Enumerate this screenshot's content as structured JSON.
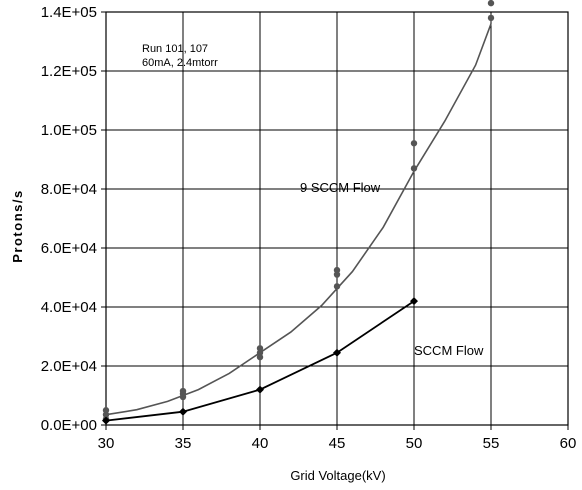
{
  "chart_data": {
    "type": "line",
    "xlabel": "Grid  Voltage(kV)",
    "ylabel": "Protons/s",
    "xlim": [
      30,
      60
    ],
    "ylim": [
      0,
      140000
    ],
    "x_ticks": [
      "30",
      "35",
      "40",
      "45",
      "50",
      "55",
      "60"
    ],
    "y_ticks": [
      "0.0E+00",
      "2.0E+04",
      "4.0E+04",
      "6.0E+04",
      "8.0E+04",
      "1.0E+05",
      "1.2E+05",
      "1.4E+05"
    ],
    "grid": true,
    "annotation": [
      "Run 101, 107",
      "60mA, 2.4mtorr"
    ],
    "series": [
      {
        "name": "9 SCCM Flow",
        "color": "#555555",
        "points": [
          [
            30,
            2000
          ],
          [
            30,
            3500
          ],
          [
            30,
            5000
          ],
          [
            35,
            9500
          ],
          [
            35,
            10500
          ],
          [
            35,
            11500
          ],
          [
            40,
            23000
          ],
          [
            40,
            24500
          ],
          [
            40,
            26000
          ],
          [
            45,
            47000
          ],
          [
            45,
            51000
          ],
          [
            45,
            52500
          ],
          [
            50,
            87000
          ],
          [
            50,
            95500
          ],
          [
            55,
            138000
          ],
          [
            55,
            143000
          ]
        ],
        "fit": [
          [
            30,
            3500
          ],
          [
            32,
            5200
          ],
          [
            34,
            8000
          ],
          [
            36,
            12000
          ],
          [
            38,
            17500
          ],
          [
            40,
            24500
          ],
          [
            42,
            31500
          ],
          [
            44,
            40500
          ],
          [
            46,
            52000
          ],
          [
            48,
            67000
          ],
          [
            50,
            86000
          ],
          [
            52,
            103000
          ],
          [
            54,
            122000
          ],
          [
            55,
            136000
          ]
        ]
      },
      {
        "name": "SCCM Flow",
        "color": "#000000",
        "points": [
          [
            30,
            1500
          ],
          [
            35,
            4500
          ],
          [
            40,
            12000
          ],
          [
            45,
            24500
          ],
          [
            50,
            42000
          ]
        ],
        "fit": [
          [
            30,
            1500
          ],
          [
            35,
            4500
          ],
          [
            40,
            12000
          ],
          [
            45,
            24500
          ],
          [
            50,
            42000
          ]
        ]
      }
    ]
  }
}
